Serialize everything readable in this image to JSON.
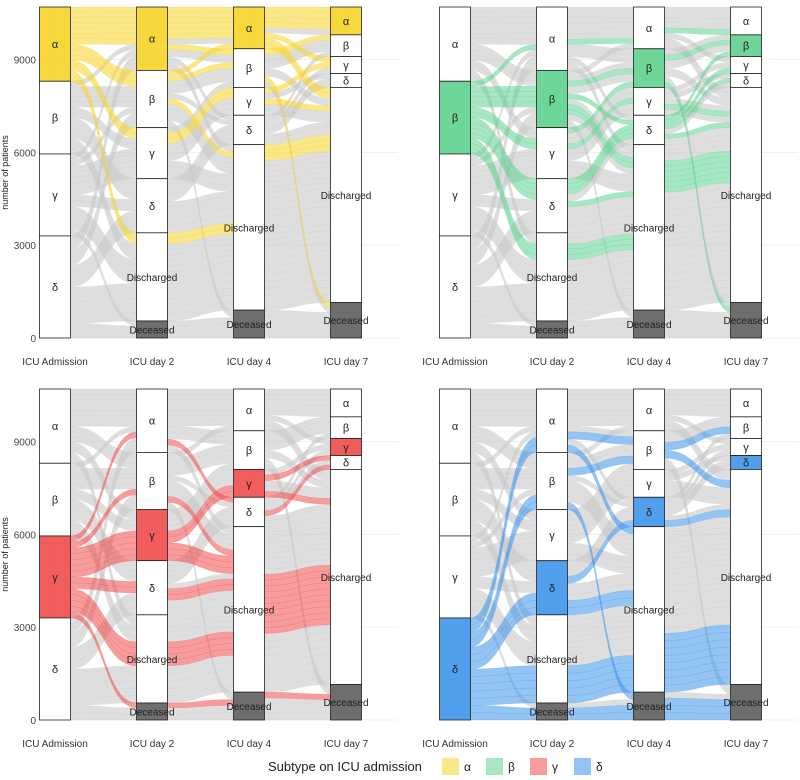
{
  "chart_data": {
    "type": "alluvial",
    "ylabel": "number of patients",
    "ylim": [
      0,
      10700
    ],
    "yticks": [
      0,
      3000,
      6000,
      9000
    ],
    "stages": [
      "ICU Admission",
      "ICU day 2",
      "ICU day 4",
      "ICU day 7"
    ],
    "strata_order": [
      "α",
      "β",
      "γ",
      "δ",
      "Discharged",
      "Deceased"
    ],
    "strata": {
      "ICU Admission": {
        "α": 2400,
        "β": 2350,
        "γ": 2650,
        "δ": 3300
      },
      "ICU day 2": {
        "α": 2050,
        "β": 1850,
        "γ": 1650,
        "δ": 1750,
        "Discharged": 2850,
        "Deceased": 550
      },
      "ICU day 4": {
        "α": 1350,
        "β": 1250,
        "γ": 900,
        "δ": 950,
        "Discharged": 5350,
        "Deceased": 900
      },
      "ICU day 7": {
        "α": 900,
        "β": 700,
        "γ": 550,
        "δ": 450,
        "Discharged": 6950,
        "Deceased": 1150
      }
    },
    "panels": [
      {
        "highlight": "α",
        "color": "#f5d327"
      },
      {
        "highlight": "β",
        "color": "#5fd18f"
      },
      {
        "highlight": "γ",
        "color": "#f04b4b"
      },
      {
        "highlight": "δ",
        "color": "#3d94ea"
      }
    ],
    "legend": {
      "title": "Subtype on ICU admission",
      "position": "bottom",
      "items": [
        {
          "label": "α",
          "color": "#f5d327"
        },
        {
          "label": "β",
          "color": "#5fd18f"
        },
        {
          "label": "γ",
          "color": "#f04b4b"
        },
        {
          "label": "δ",
          "color": "#3d94ea"
        }
      ]
    },
    "flow_color": "#c8c8c8",
    "deceased_fill": "#6e6e6e",
    "grid": true
  }
}
